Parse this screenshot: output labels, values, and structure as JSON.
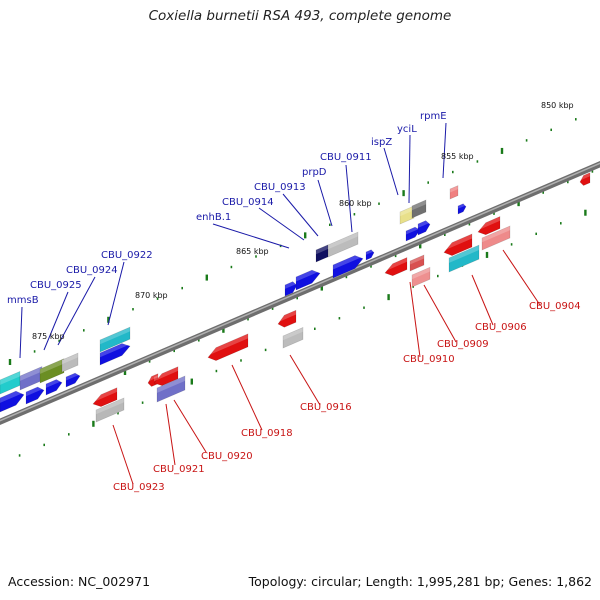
{
  "title": "Coxiella burnetii RSA 493, complete genome",
  "footer": {
    "accession": "Accession: NC_002971",
    "summary": "Topology: circular; Length: 1,995,281 bp; Genes: 1,862"
  },
  "tick_labels": [
    "850 kbp",
    "855 kbp",
    "860 kbp",
    "865 kbp",
    "870 kbp",
    "875 kbp"
  ],
  "colors": {
    "forward": "#1010e0",
    "reverse": "#e01010",
    "forward_label": "#1a1aa8",
    "reverse_label": "#c81414",
    "backbone": "#7a7a7a",
    "tick": "#1a7a1a"
  },
  "forward_genes": [
    "rpmE",
    "yciL",
    "ispZ",
    "CBU_0911",
    "prpD",
    "CBU_0913",
    "CBU_0914",
    "enhB.1",
    "CBU_0922",
    "CBU_0924",
    "CBU_0925",
    "mmsB"
  ],
  "reverse_genes": [
    "CBU_0904",
    "CBU_0906",
    "CBU_0909",
    "CBU_0910",
    "CBU_0916",
    "CBU_0918",
    "CBU_0920",
    "CBU_0921",
    "CBU_0923"
  ]
}
